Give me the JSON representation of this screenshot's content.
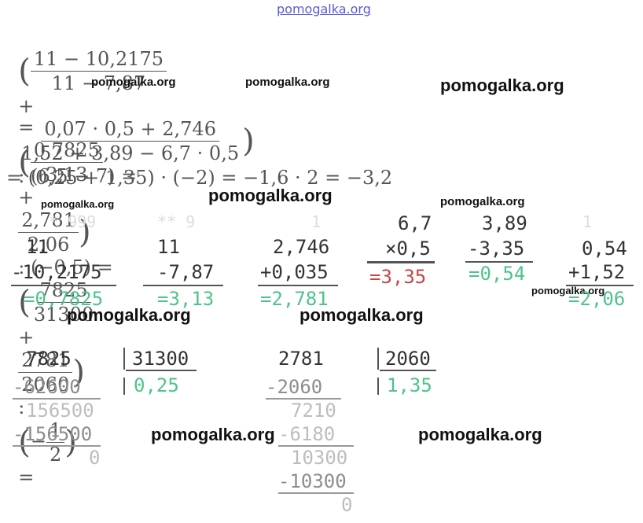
{
  "watermark": {
    "top": "pomogalka.org",
    "big": "pomogalka.org",
    "small": "pomogalka.org"
  },
  "equation": {
    "line1": {
      "f1_num": "11 − 10,2175",
      "f1_den": "11 − 7,87",
      "plus": "+",
      "f2_num": "0,07 · 0,5 + 2,746",
      "f2_den": "1,52 + 3,89 − 6,7 · 0,5",
      "tail": ": (6,5 − 7) ="
    },
    "line2": {
      "eq": "=",
      "f1_num": "0,7825",
      "f1_den": "3,13",
      "plus": "+",
      "f2_num": "2,781",
      "f2_den": "2,06",
      "mid": ": (−0,5) =",
      "f3_num": "7825",
      "f3_den": "31300",
      "f4_num": "2781",
      "f4_den": "2060",
      "colon": ":",
      "minus": "−",
      "f5_num": "1",
      "f5_den": "2",
      "end": "="
    },
    "line3": "= (0,25 + 1,35) · (−2) = −1,6 · 2 = −3,2"
  },
  "columns": {
    "c1": {
      "carry": "* 999",
      "a": "11",
      "b": "-10,2175",
      "r": "=0,7825"
    },
    "c2": {
      "carry": "** 9",
      "a": "11",
      "b": "-7,87",
      "r": "=3,13"
    },
    "c3": {
      "carry": "1",
      "a": "2,746",
      "b": "+0,035",
      "r": "=2,781"
    },
    "c4": {
      "a": "6,7",
      "b": "×0,5",
      "r": "=3,35"
    },
    "c5": {
      "a": "3,89",
      "b": "-3,35",
      "r": "=0,54"
    },
    "c6": {
      "carry": "1",
      "a": "0,54",
      "b": "+1,52",
      "r": "=2,06"
    }
  },
  "division1": {
    "dividend": "7825",
    "divisor": "31300",
    "quotient": "0,25",
    "steps": [
      "-62600",
      "156500",
      "-156500",
      "0"
    ]
  },
  "division2": {
    "dividend": "2781",
    "divisor": "2060",
    "quotient": "1,35",
    "steps": [
      "-2060",
      "7210",
      "-6180",
      "10300",
      "-10300",
      "0"
    ]
  }
}
